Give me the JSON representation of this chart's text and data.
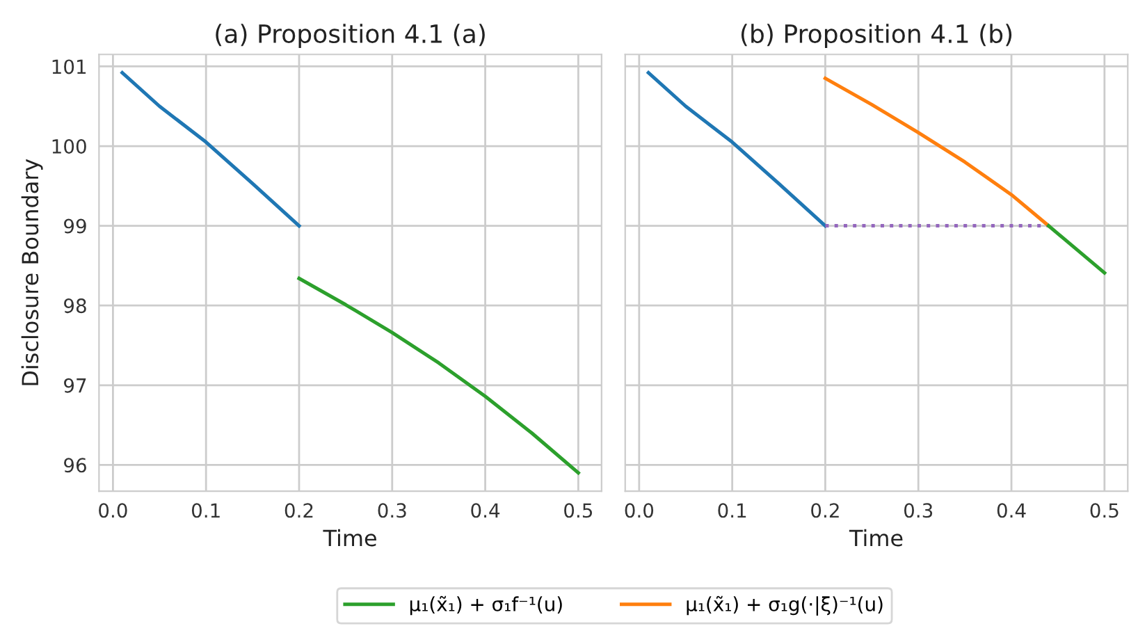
{
  "chart_data": [
    {
      "type": "line",
      "title": "(a) Proposition 4.1 (a)",
      "xlabel": "Time",
      "ylabel": "Disclosure Boundary",
      "xlim": [
        -0.015,
        0.525
      ],
      "xticks": [
        {
          "value": 0,
          "label": "0.0"
        },
        0.1,
        0.2,
        0.3,
        0.4,
        0.5
      ],
      "ylim": [
        95.67,
        101.15
      ],
      "yticks": [
        96,
        97,
        98,
        99,
        100,
        101
      ],
      "grid": true,
      "legend": "bottom",
      "series": [
        {
          "color": "#1f77b4",
          "x": [
            0.01,
            0.05,
            0.1,
            0.15,
            0.2
          ],
          "values": [
            100.92,
            100.5,
            100.05,
            99.53,
            99.0
          ]
        },
        {
          "name": "μ₁(x̃₁) + σ₁f⁻¹(u)",
          "color": "#2ca02c",
          "x": [
            0.2,
            0.25,
            0.3,
            0.35,
            0.4,
            0.45,
            0.5
          ],
          "values": [
            98.34,
            98.01,
            97.66,
            97.28,
            96.86,
            96.4,
            95.9
          ]
        }
      ]
    },
    {
      "type": "line",
      "title": "(b) Proposition 4.1 (b)",
      "xlabel": "Time",
      "xlim": [
        -0.015,
        0.525
      ],
      "xticks": [
        {
          "value": 0,
          "label": "0.0"
        },
        0.1,
        0.2,
        0.3,
        0.4,
        0.5
      ],
      "ylim": [
        95.67,
        101.15
      ],
      "yticks": [
        96,
        97,
        98,
        99,
        100,
        101
      ],
      "grid": true,
      "legend": "bottom",
      "tick_labels": "x",
      "series": [
        {
          "color": "#1f77b4",
          "x": [
            0.01,
            0.05,
            0.1,
            0.15,
            0.2
          ],
          "values": [
            100.92,
            100.5,
            100.05,
            99.53,
            99.0
          ]
        },
        {
          "color": "#9467bd",
          "line_style": "dotted",
          "x": [
            0.2,
            0.44
          ],
          "values": [
            99.0,
            99.0
          ]
        },
        {
          "name": "μ₁(x̃₁) + σ₁g(·|ξ)⁻¹(u)",
          "color": "#ff7f0e",
          "x": [
            0.2,
            0.25,
            0.3,
            0.35,
            0.4,
            0.44
          ],
          "values": [
            100.85,
            100.52,
            100.17,
            99.8,
            99.39,
            99.0
          ]
        },
        {
          "name": "μ₁(x̃₁) + σ₁f⁻¹(u)",
          "color": "#2ca02c",
          "x": [
            0.44,
            0.5
          ],
          "values": [
            99.0,
            98.41
          ]
        }
      ]
    }
  ]
}
